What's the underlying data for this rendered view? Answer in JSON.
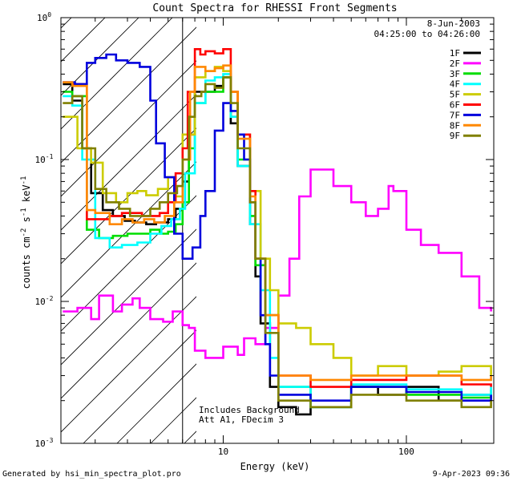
{
  "chart_data": {
    "type": "line",
    "title": "Count Spectra for RHESSI Front Segments",
    "xlabel": "Energy (keV)",
    "ylabel": "counts cm-2 s-1 keV-1",
    "xscale": "log",
    "yscale": "log",
    "xlim": [
      1.3,
      300
    ],
    "ylim": [
      0.001,
      1
    ],
    "x_ticks": [
      {
        "value": 10,
        "label": "10"
      },
      {
        "value": 100,
        "label": "100"
      }
    ],
    "y_ticks": [
      {
        "value": 1,
        "label": "10",
        "exp": "0"
      },
      {
        "value": 0.1,
        "label": "10",
        "exp": "-1"
      },
      {
        "value": 0.01,
        "label": "10",
        "exp": "-2"
      },
      {
        "value": 0.001,
        "label": "10",
        "exp": "-3"
      }
    ],
    "date": "8-Jun-2003",
    "time_range": "04:25:00 to 04:26:00",
    "notes": [
      "Includes Background",
      "Att A1, FDecim 3"
    ],
    "threshold_energy": 6,
    "footer_left": "Generated by hsi_min_spectra_plot.pro",
    "footer_right": "9-Apr-2023 09:36",
    "series": [
      {
        "name": "1F",
        "color": "#000000",
        "x": [
          1.33,
          1.5,
          1.7,
          1.9,
          2.2,
          2.5,
          2.9,
          3.3,
          3.8,
          4.3,
          5,
          5.5,
          6,
          6.5,
          7,
          8,
          9,
          10,
          11,
          12,
          14,
          15,
          16,
          18,
          20,
          25,
          30,
          40,
          50,
          70,
          100,
          150,
          200,
          290
        ],
        "y": [
          0.34,
          0.26,
          0.12,
          0.058,
          0.044,
          0.04,
          0.037,
          0.036,
          0.035,
          0.036,
          0.038,
          0.045,
          0.07,
          0.15,
          0.3,
          0.3,
          0.33,
          0.38,
          0.18,
          0.09,
          0.035,
          0.015,
          0.007,
          0.0025,
          0.0018,
          0.0016,
          0.0018,
          0.0018,
          0.0025,
          0.0022,
          0.0025,
          0.002,
          0.0022,
          0.0021
        ]
      },
      {
        "name": "2F",
        "color": "#ff00ff",
        "x": [
          1.33,
          1.6,
          1.9,
          2.1,
          2.5,
          2.8,
          3.2,
          3.5,
          4,
          4.7,
          5.3,
          6,
          6.5,
          7,
          8,
          10,
          12,
          13,
          15,
          17,
          20,
          23,
          26,
          30,
          40,
          50,
          60,
          70,
          80,
          85,
          100,
          120,
          150,
          200,
          250,
          290
        ],
        "y": [
          0.0085,
          0.009,
          0.0075,
          0.011,
          0.0085,
          0.0095,
          0.0105,
          0.009,
          0.0075,
          0.0072,
          0.0085,
          0.0068,
          0.0065,
          0.0045,
          0.004,
          0.0048,
          0.0042,
          0.0055,
          0.005,
          0.0065,
          0.011,
          0.02,
          0.055,
          0.085,
          0.065,
          0.05,
          0.04,
          0.045,
          0.065,
          0.06,
          0.032,
          0.025,
          0.022,
          0.015,
          0.009,
          0.0085
        ]
      },
      {
        "name": "3F",
        "color": "#00dd00",
        "x": [
          1.33,
          1.5,
          1.8,
          2.1,
          2.5,
          3,
          3.5,
          4,
          4.5,
          5,
          5.5,
          6,
          6.5,
          7,
          8,
          9,
          10,
          11,
          12,
          14,
          15,
          17,
          20,
          30,
          50,
          100,
          200,
          290
        ],
        "y": [
          0.3,
          0.28,
          0.032,
          0.028,
          0.029,
          0.03,
          0.03,
          0.032,
          0.03,
          0.031,
          0.035,
          0.05,
          0.12,
          0.25,
          0.3,
          0.3,
          0.38,
          0.2,
          0.1,
          0.04,
          0.018,
          0.008,
          0.0025,
          0.0018,
          0.0025,
          0.0022,
          0.0021,
          0.0024
        ]
      },
      {
        "name": "4F",
        "color": "#00ffff",
        "x": [
          1.33,
          1.5,
          1.7,
          2,
          2.4,
          2.8,
          3.4,
          4,
          4.6,
          5.2,
          5.8,
          6.2,
          7,
          8,
          9,
          10,
          11,
          12,
          14,
          16,
          18,
          20,
          30,
          50,
          100,
          200,
          290
        ],
        "y": [
          0.28,
          0.24,
          0.1,
          0.028,
          0.024,
          0.025,
          0.026,
          0.03,
          0.034,
          0.038,
          0.045,
          0.08,
          0.25,
          0.36,
          0.38,
          0.4,
          0.2,
          0.09,
          0.035,
          0.012,
          0.004,
          0.0025,
          0.0018,
          0.0026,
          0.0024,
          0.0022,
          0.0025
        ]
      },
      {
        "name": "5F",
        "color": "#cccc00",
        "x": [
          1.33,
          1.6,
          1.9,
          2.2,
          2.6,
          3,
          3.4,
          3.8,
          4.4,
          5,
          5.5,
          6,
          7,
          8,
          9,
          10,
          11,
          12,
          14,
          16,
          18,
          20,
          25,
          30,
          40,
          50,
          70,
          100,
          150,
          200,
          290
        ],
        "y": [
          0.2,
          0.12,
          0.095,
          0.058,
          0.05,
          0.058,
          0.06,
          0.056,
          0.062,
          0.075,
          0.055,
          0.15,
          0.38,
          0.42,
          0.45,
          0.42,
          0.3,
          0.15,
          0.06,
          0.02,
          0.012,
          0.007,
          0.0065,
          0.005,
          0.004,
          0.003,
          0.0035,
          0.003,
          0.0032,
          0.0035,
          0.003
        ]
      },
      {
        "name": "6F",
        "color": "#ff0000",
        "x": [
          1.33,
          1.5,
          1.8,
          2,
          2.4,
          2.8,
          3.2,
          3.6,
          4,
          4.5,
          5,
          5.5,
          6,
          6.4,
          7,
          7.5,
          8,
          9,
          10,
          11,
          12,
          14,
          15,
          17,
          20,
          30,
          50,
          100,
          200,
          290
        ],
        "y": [
          0.35,
          0.34,
          0.038,
          0.038,
          0.04,
          0.042,
          0.042,
          0.04,
          0.04,
          0.042,
          0.05,
          0.08,
          0.12,
          0.3,
          0.6,
          0.55,
          0.58,
          0.56,
          0.6,
          0.3,
          0.15,
          0.06,
          0.02,
          0.008,
          0.003,
          0.0025,
          0.0028,
          0.003,
          0.0026,
          0.0025
        ]
      },
      {
        "name": "7F",
        "color": "#0000dd",
        "x": [
          1.33,
          1.55,
          1.8,
          2,
          2.3,
          2.6,
          3,
          3.5,
          4,
          4.3,
          4.8,
          5.4,
          6,
          6.8,
          7.5,
          8,
          9,
          10,
          11,
          12,
          13,
          14,
          15,
          16,
          17,
          18,
          20,
          30,
          50,
          100,
          200,
          290
        ],
        "y": [
          0.35,
          0.34,
          0.48,
          0.52,
          0.55,
          0.5,
          0.48,
          0.45,
          0.26,
          0.13,
          0.075,
          0.03,
          0.02,
          0.024,
          0.04,
          0.06,
          0.16,
          0.25,
          0.22,
          0.15,
          0.1,
          0.05,
          0.02,
          0.008,
          0.005,
          0.003,
          0.0022,
          0.002,
          0.0025,
          0.0023,
          0.002,
          0.0022
        ]
      },
      {
        "name": "8F",
        "color": "#ff8800",
        "x": [
          1.33,
          1.5,
          1.8,
          2,
          2.4,
          2.8,
          3.2,
          3.7,
          4.2,
          4.8,
          5.4,
          6,
          6.6,
          7,
          8,
          9,
          10,
          11,
          12,
          14,
          15,
          17,
          20,
          30,
          50,
          100,
          200,
          290
        ],
        "y": [
          0.35,
          0.33,
          0.044,
          0.042,
          0.035,
          0.038,
          0.036,
          0.038,
          0.036,
          0.04,
          0.05,
          0.1,
          0.3,
          0.45,
          0.42,
          0.44,
          0.46,
          0.3,
          0.14,
          0.055,
          0.02,
          0.008,
          0.003,
          0.0028,
          0.003,
          0.003,
          0.0028,
          0.003
        ]
      },
      {
        "name": "9F",
        "color": "#808000",
        "x": [
          1.33,
          1.5,
          1.7,
          2,
          2.3,
          2.7,
          3.1,
          3.5,
          4,
          4.5,
          5,
          5.6,
          6,
          6.5,
          7,
          7.6,
          8,
          9,
          10,
          11,
          12,
          14,
          15,
          17,
          20,
          30,
          50,
          100,
          200,
          290
        ],
        "y": [
          0.25,
          0.28,
          0.12,
          0.062,
          0.05,
          0.045,
          0.04,
          0.04,
          0.045,
          0.05,
          0.058,
          0.065,
          0.1,
          0.2,
          0.28,
          0.3,
          0.34,
          0.32,
          0.38,
          0.25,
          0.12,
          0.05,
          0.02,
          0.006,
          0.002,
          0.0018,
          0.0022,
          0.002,
          0.0018,
          0.002
        ]
      }
    ]
  }
}
